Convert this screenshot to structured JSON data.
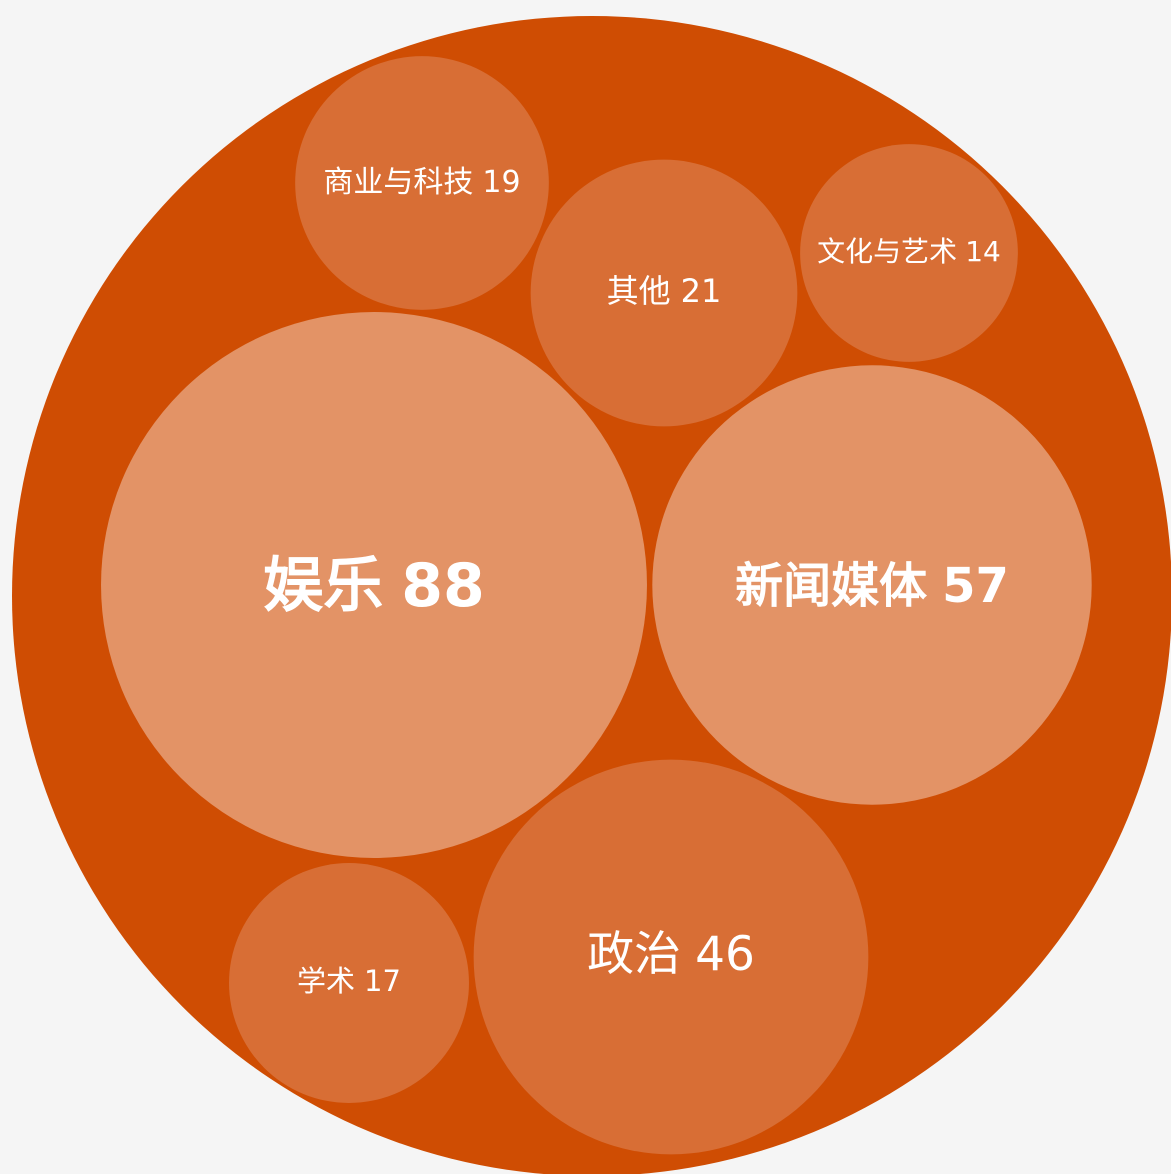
{
  "chart_data": {
    "type": "packed_bubble",
    "categories": [
      "娱乐",
      "新闻媒体",
      "政治",
      "其他",
      "商业与科技",
      "学术",
      "文化与艺术"
    ],
    "values": [
      88,
      57,
      46,
      21,
      19,
      17,
      14
    ],
    "colors": [
      "#e39366",
      "#e39366",
      "#d86e35",
      "#d86e35",
      "#d86e35",
      "#d86e35",
      "#d86e35"
    ],
    "container_color": "#cf4d03"
  }
}
